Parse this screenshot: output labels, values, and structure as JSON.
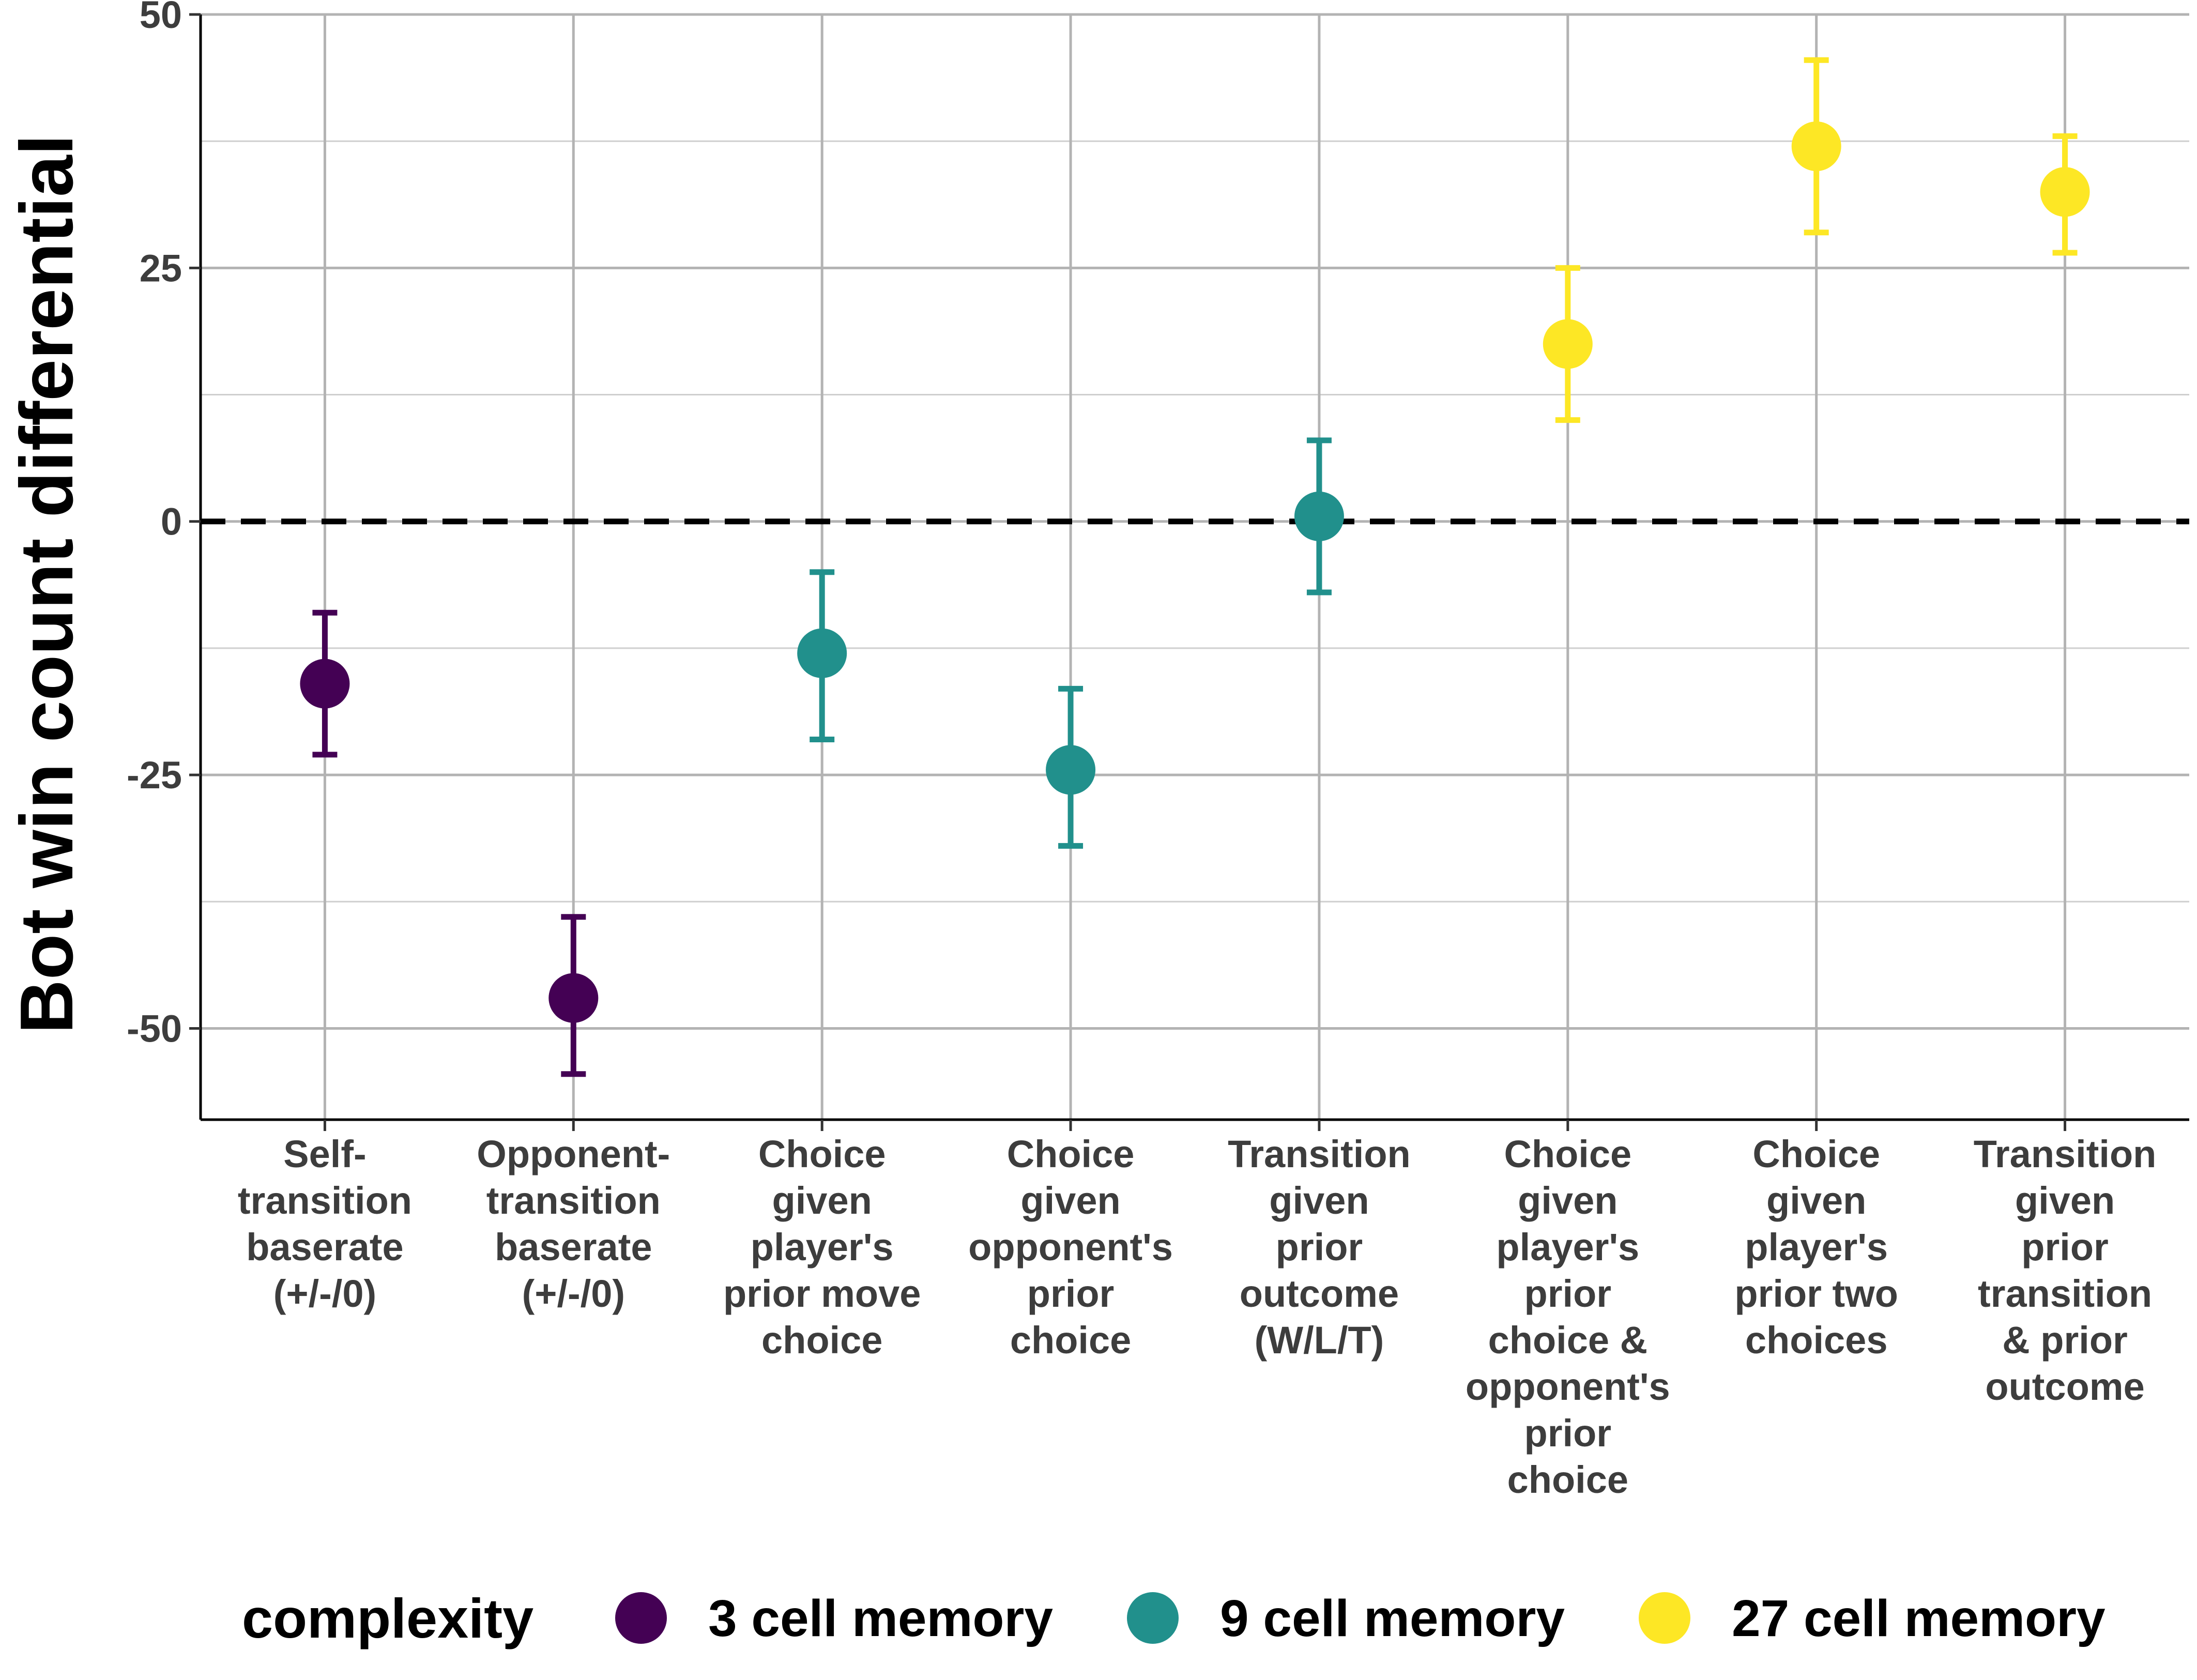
{
  "chart_data": {
    "type": "scatter",
    "xlabel": "",
    "ylabel": "Bot win count differential",
    "ylim": [
      -59,
      50
    ],
    "yticks": [
      50,
      25,
      0,
      -25,
      -50
    ],
    "ytick_labels": [
      "50",
      "25",
      "0",
      "-25",
      "-50"
    ],
    "grid": true,
    "reference_line": {
      "y": 0,
      "style": "dashed"
    },
    "categories": [
      [
        "Self-",
        "transition",
        "baserate",
        "(+/-/0)"
      ],
      [
        "Opponent-",
        "transition",
        "baserate",
        "(+/-/0)"
      ],
      [
        "Choice",
        "given",
        "player's",
        "prior move",
        "choice"
      ],
      [
        "Choice",
        "given",
        "opponent's",
        "prior",
        "choice"
      ],
      [
        "Transition",
        "given",
        "prior",
        "outcome",
        "(W/L/T)"
      ],
      [
        "Choice",
        "given",
        "player's",
        "prior",
        "choice &",
        "opponent's",
        "prior",
        "choice"
      ],
      [
        "Choice",
        "given",
        "player's",
        "prior two",
        "choices"
      ],
      [
        "Transition",
        "given",
        "prior",
        "transition",
        "& prior",
        "outcome"
      ]
    ],
    "points": [
      {
        "y": -16.0,
        "lo": -23.0,
        "hi": -9.0,
        "group": 0
      },
      {
        "y": -47.0,
        "lo": -54.5,
        "hi": -39.0,
        "group": 0
      },
      {
        "y": -13.0,
        "lo": -21.5,
        "hi": -5.0,
        "group": 1
      },
      {
        "y": -24.5,
        "lo": -32.0,
        "hi": -16.5,
        "group": 1
      },
      {
        "y": 0.5,
        "lo": -7.0,
        "hi": 8.0,
        "group": 1
      },
      {
        "y": 17.5,
        "lo": 10.0,
        "hi": 25.0,
        "group": 2
      },
      {
        "y": 37.0,
        "lo": 28.5,
        "hi": 45.5,
        "group": 2
      },
      {
        "y": 32.5,
        "lo": 26.5,
        "hi": 38.0,
        "group": 2
      }
    ],
    "legend": {
      "title": "complexity",
      "position": "bottom",
      "items": [
        {
          "label": "3 cell memory",
          "color": "#440154"
        },
        {
          "label": "9 cell memory",
          "color": "#21908C"
        },
        {
          "label": "27 cell memory",
          "color": "#FDE725"
        }
      ]
    }
  }
}
